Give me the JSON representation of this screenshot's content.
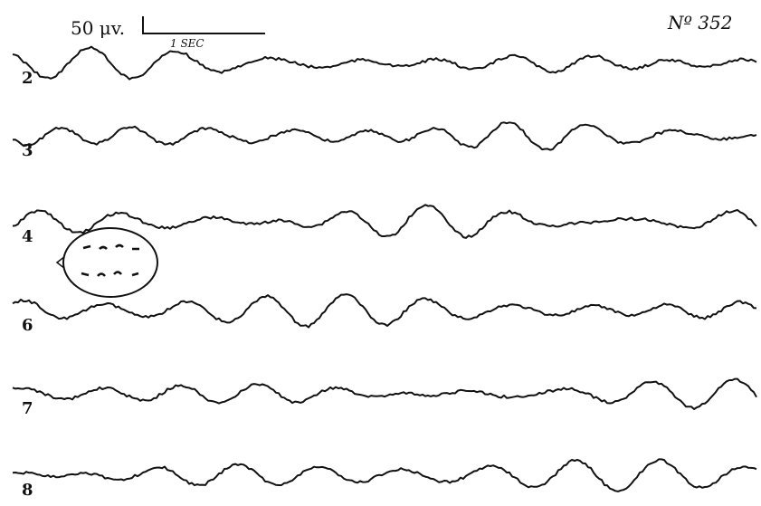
{
  "header": {
    "amplitude_scale": "50 μv.",
    "time_scale": "1 SEC",
    "record_number": "Nº 352"
  },
  "channels": [
    {
      "label": "2"
    },
    {
      "label": "3"
    },
    {
      "label": "4"
    },
    {
      "label": "6"
    },
    {
      "label": "7"
    },
    {
      "label": "8"
    }
  ]
}
